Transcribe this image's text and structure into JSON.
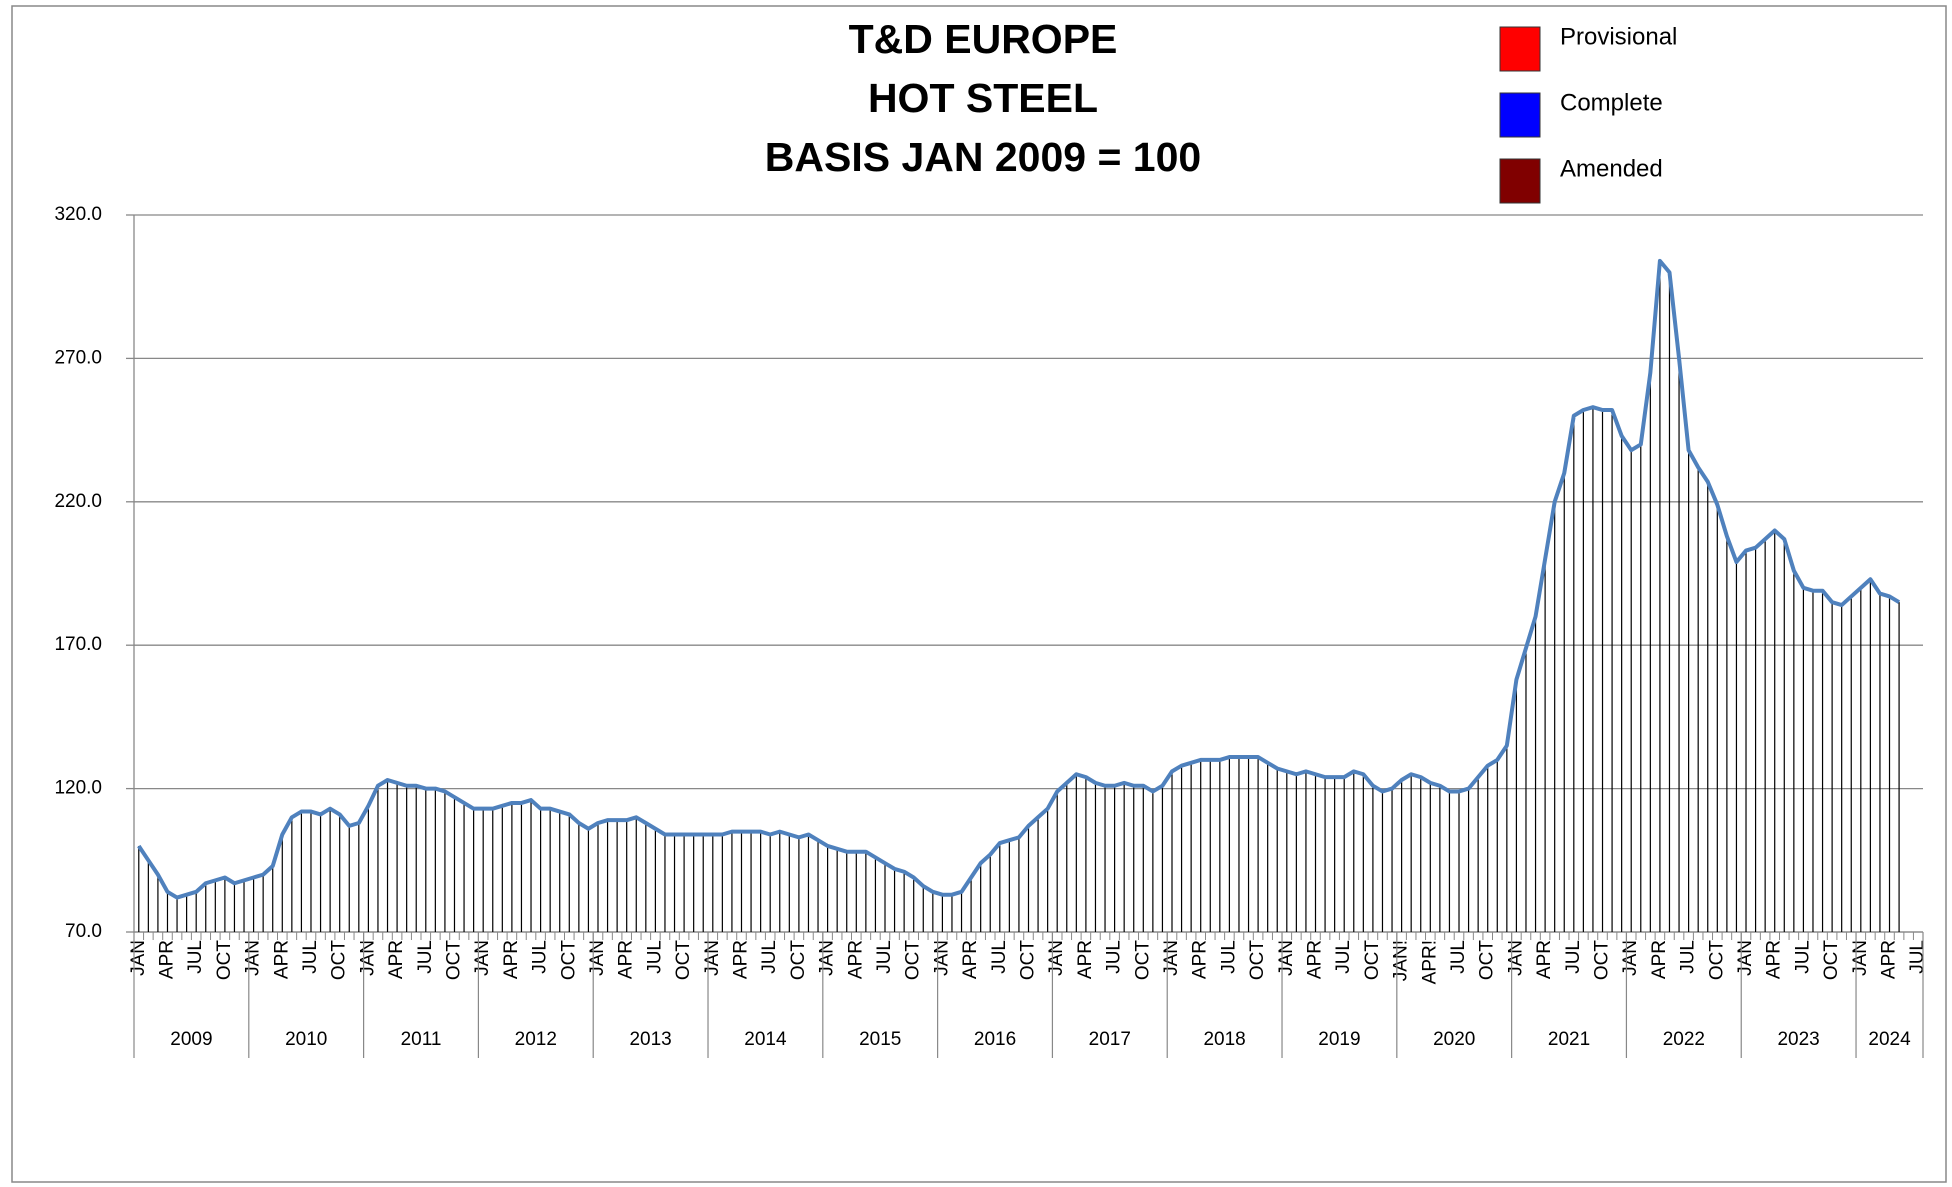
{
  "chart_data": {
    "type": "line",
    "title_lines": [
      "T&D EUROPE",
      "HOT STEEL",
      "BASIS JAN 2009 = 100"
    ],
    "legend": [
      {
        "name": "Provisional",
        "color": "#ff0000"
      },
      {
        "name": "Complete",
        "color": "#0000ff"
      },
      {
        "name": "Amended",
        "color": "#800000"
      }
    ],
    "categories": [
      "JAN",
      null,
      null,
      "APR",
      null,
      null,
      "JUL",
      null,
      null,
      "OCT",
      null,
      null,
      "JAN",
      null,
      null,
      "APR",
      null,
      null,
      "JUL",
      null,
      null,
      "OCT",
      null,
      null,
      "JAN",
      null,
      null,
      "APR",
      null,
      null,
      "JUL",
      null,
      null,
      "OCT",
      null,
      null,
      "JAN",
      null,
      null,
      "APR",
      null,
      null,
      "JUL",
      null,
      null,
      "OCT",
      null,
      null,
      "JAN",
      null,
      null,
      "APR",
      null,
      null,
      "JUL",
      null,
      null,
      "OCT",
      null,
      null,
      "JAN",
      null,
      null,
      "APR",
      null,
      null,
      "JUL",
      null,
      null,
      "OCT",
      null,
      null,
      "JAN",
      null,
      null,
      "APR",
      null,
      null,
      "JUL",
      null,
      null,
      "OCT",
      null,
      null,
      "JAN",
      null,
      null,
      "APR",
      null,
      null,
      "JUL",
      null,
      null,
      "OCT",
      null,
      null,
      "JAN",
      null,
      null,
      "APR",
      null,
      null,
      "JUL",
      null,
      null,
      "OCT",
      null,
      null,
      "JAN",
      null,
      null,
      "APR",
      null,
      null,
      "JUL",
      null,
      null,
      "OCT",
      null,
      null,
      "JAN",
      null,
      null,
      "APR",
      null,
      null,
      "JUL",
      null,
      null,
      "OCT",
      null,
      null,
      "JAN!",
      null,
      null,
      "APR!",
      null,
      null,
      "JUL",
      null,
      null,
      "OCT",
      null,
      null,
      "JAN",
      null,
      null,
      "APR",
      null,
      null,
      "JUL",
      null,
      null,
      "OCT",
      null,
      null,
      "JAN",
      null,
      null,
      "APR",
      null,
      null,
      "JUL",
      null,
      null,
      "OCT",
      null,
      null,
      "JAN",
      null,
      null,
      "APR",
      null,
      null,
      "JUL",
      null,
      null,
      "OCT",
      null,
      null,
      "JAN",
      null,
      null,
      "APR",
      null,
      null,
      "JUL"
    ],
    "years": [
      "2009",
      "2010",
      "2011",
      "2012",
      "2013",
      "2014",
      "2015",
      "2016",
      "2017",
      "2018",
      "2019",
      "2020",
      "2021",
      "2022",
      "2023",
      "2024"
    ],
    "series": [
      {
        "name": "Complete",
        "color": "#4f81bd",
        "drop_color": "#000000",
        "values": [
          100,
          95,
          90,
          84,
          82,
          83,
          84,
          87,
          88,
          89,
          87,
          88,
          89,
          90,
          93,
          104,
          110,
          112,
          112,
          111,
          113,
          111,
          107,
          108,
          114,
          121,
          123,
          122,
          121,
          121,
          120,
          120,
          119,
          117,
          115,
          113,
          113,
          113,
          114,
          115,
          115,
          116,
          113,
          113,
          112,
          111,
          108,
          106,
          108,
          109,
          109,
          109,
          110,
          108,
          106,
          104,
          104,
          104,
          104,
          104,
          104,
          104,
          105,
          105,
          105,
          105,
          104,
          105,
          104,
          103,
          104,
          102,
          100,
          99,
          98,
          98,
          98,
          96,
          94,
          92,
          91,
          89,
          86,
          84,
          83,
          83,
          84,
          89,
          94,
          97,
          101,
          102,
          103,
          107,
          110,
          113,
          119,
          122,
          125,
          124,
          122,
          121,
          121,
          122,
          121,
          121,
          119,
          121,
          126,
          128,
          129,
          130,
          130,
          130,
          131,
          131,
          131,
          131,
          129,
          127,
          126,
          125,
          126,
          125,
          124,
          124,
          124,
          126,
          125,
          121,
          119,
          120,
          123,
          125,
          124,
          122,
          121,
          119,
          119,
          120,
          124,
          128,
          130,
          135,
          158,
          169,
          180,
          200,
          220,
          230,
          250,
          252,
          253,
          252,
          252,
          243,
          238,
          240,
          265,
          304,
          300,
          270,
          238,
          232,
          227,
          219,
          208,
          199,
          203,
          204,
          207,
          210,
          207,
          196,
          190,
          189,
          189,
          185,
          184,
          187,
          190,
          193,
          188,
          187,
          185,
          null,
          null
        ]
      }
    ],
    "ylim": [
      70,
      320
    ],
    "yticks": [
      {
        "value": 70,
        "label": "70.0"
      },
      {
        "value": 120,
        "label": "120.0"
      },
      {
        "value": 170,
        "label": "170.0"
      },
      {
        "value": 220,
        "label": "220.0"
      },
      {
        "value": 270,
        "label": "270.0"
      },
      {
        "value": 320,
        "label": "320.0"
      }
    ],
    "grid": true
  }
}
